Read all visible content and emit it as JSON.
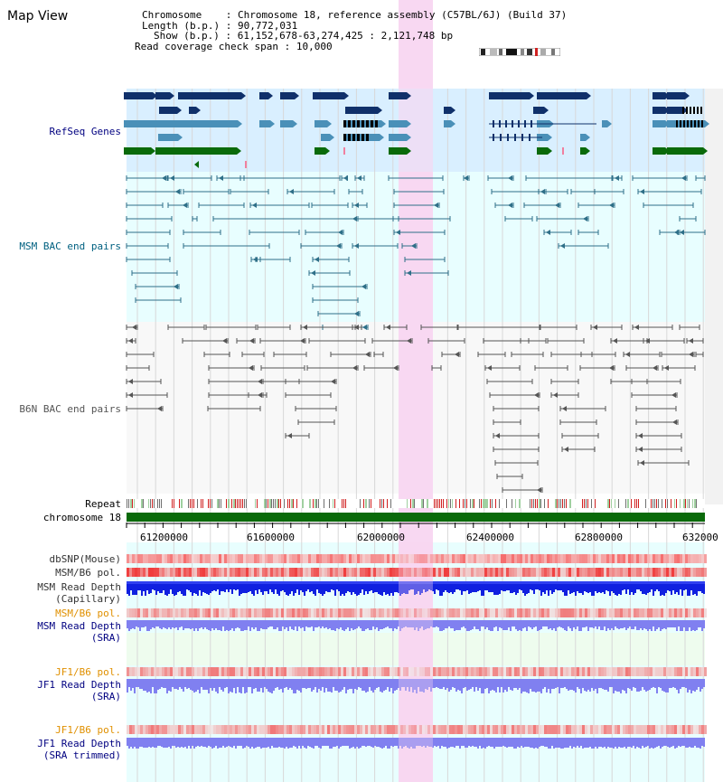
{
  "view_title": "Map View",
  "info": {
    "chromosome_key": "Chromosome",
    "chromosome_value": "Chromosome 18, reference assembly (C57BL/6J) (Build 37)",
    "length_key": "Length (b.p.)",
    "length_value": "90,772,031",
    "show_key": "Show (b.p.)",
    "show_value": "61,152,678-63,274,425 : 2,121,748 bp",
    "coverage_key": "Read coverage check span",
    "coverage_value": "10,000"
  },
  "tracks": {
    "refseq": "RefSeq Genes",
    "msm_bac": "MSM BAC end pairs",
    "b6n_bac": "B6N BAC end pairs",
    "repeat": "Repeat",
    "chromosome": "chromosome 18",
    "dbsnp": "dbSNP(Mouse)",
    "msm_pol1": "MSM/B6 pol.",
    "msm_depth_cap_1": "MSM Read Depth",
    "msm_depth_cap_2": "(Capillary)",
    "msm_pol2": "MSM/B6 pol.",
    "msm_depth_sra_1": "MSM Read Depth",
    "msm_depth_sra_2": "(SRA)",
    "jf1_pol1": "JF1/B6 pol.",
    "jf1_depth_sra_1": "JF1 Read Depth",
    "jf1_depth_sra_2": "(SRA)",
    "jf1_pol2": "JF1/B6 pol.",
    "jf1_depth_trim_1": "JF1 Read Depth",
    "jf1_depth_trim_2": "(SRA trimmed)"
  },
  "axis": {
    "ticks": [
      "61200000",
      "61600000",
      "62000000",
      "62400000",
      "62800000",
      "632000"
    ]
  },
  "colors": {
    "refseq_bg": "#d9efff",
    "msm_bg": "#e8feff",
    "b6n_bg": "#f8f8f8",
    "highlight": "#f8d8f2",
    "gene_navy": "#10306a",
    "gene_steel": "#4a90b8",
    "gene_green": "#0a6a0a",
    "msm_pair": "#2e6f88",
    "b6n_pair": "#555555",
    "chrom_bar": "#0a6a0a",
    "depth_blue_dark": "#1020e0",
    "depth_blue_light": "#8080f0",
    "label_navy": "#000080",
    "label_teal": "#006080",
    "label_orange": "#e09000"
  }
}
